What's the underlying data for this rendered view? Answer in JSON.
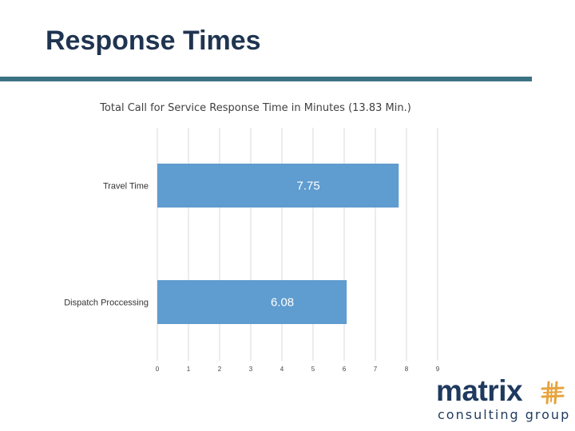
{
  "slide": {
    "title": "Response Times"
  },
  "logo": {
    "word": "matrix",
    "tagline": "consulting group",
    "mark_icon": "hash-grid-icon",
    "mark_color": "#e8a33d"
  },
  "colors": {
    "title": "#1f3450",
    "rule": "#3b7283",
    "bar": "#5f9ccf",
    "grid": "#d9d9d9"
  },
  "chart_data": {
    "type": "bar",
    "orientation": "horizontal",
    "title": "Total Call for Service Response Time in Minutes (13.83 Min.)",
    "categories": [
      "Travel Time",
      "Dispatch Proccessing"
    ],
    "values": [
      7.75,
      6.08
    ],
    "data_labels": [
      "7.75",
      "6.08"
    ],
    "xlim": [
      0,
      9
    ],
    "xticks": [
      0,
      1,
      2,
      3,
      4,
      5,
      6,
      7,
      8,
      9
    ],
    "grid": true,
    "legend": "none"
  }
}
